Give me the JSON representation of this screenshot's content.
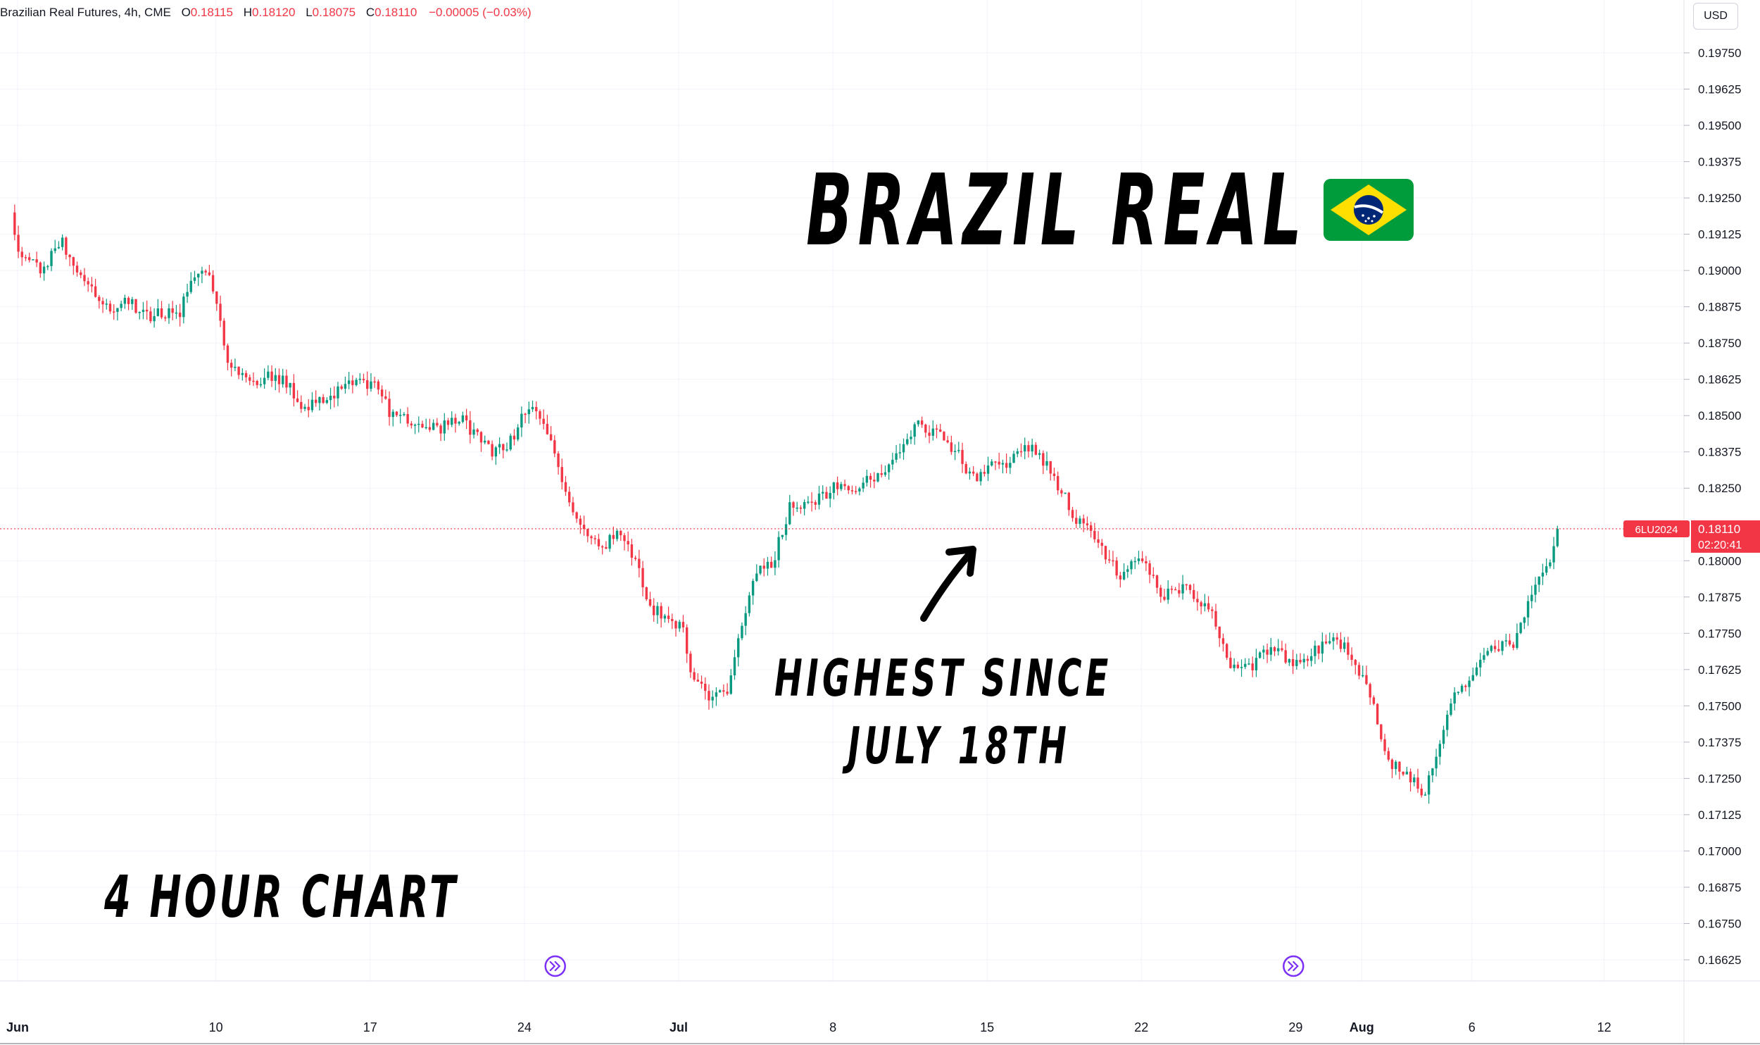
{
  "header": {
    "instrument": "Brazilian Real Futures, 4h, CME",
    "open_label": "O",
    "open": "0.18115",
    "high_label": "H",
    "high": "0.18120",
    "low_label": "L",
    "low": "0.18075",
    "close_label": "C",
    "close": "0.18110",
    "change": "−0.00005 (−0.03%)"
  },
  "currency": "USD",
  "annotations": {
    "title": "BRAZIL REAL",
    "flag_icon": "brazil-flag-icon",
    "arrow_icon": "arrow-up-right-icon",
    "highest_line1": "HIGHEST SINCE",
    "highest_line2": "JULY 18TH",
    "timeframe": "4 HOUR CHART"
  },
  "price_label": {
    "symbol": "6LU2024",
    "price": "0.18110",
    "countdown": "02:20:41"
  },
  "colors": {
    "up": "#089981",
    "down": "#f23645",
    "grid": "#f0f3fa",
    "axis_text": "#131722",
    "event_icon": "#7b2ff7"
  },
  "chart_data": {
    "type": "candlestick",
    "title": "Brazilian Real Futures, 4h, CME",
    "ylim": [
      0.16575,
      0.19825
    ],
    "y_ticks": [
      "0.19750",
      "0.19625",
      "0.19500",
      "0.19375",
      "0.19250",
      "0.19125",
      "0.19000",
      "0.18875",
      "0.18750",
      "0.18625",
      "0.18500",
      "0.18375",
      "0.18250",
      "0.18000",
      "0.17875",
      "0.17750",
      "0.17625",
      "0.17500",
      "0.17375",
      "0.17250",
      "0.17125",
      "0.17000",
      "0.16875",
      "0.16750",
      "0.16625"
    ],
    "x_ticks": [
      {
        "label": "Jun",
        "day": 0
      },
      {
        "label": "10",
        "day": 9
      },
      {
        "label": "17",
        "day": 16
      },
      {
        "label": "24",
        "day": 23
      },
      {
        "label": "Jul",
        "day": 30
      },
      {
        "label": "8",
        "day": 37
      },
      {
        "label": "15",
        "day": 44
      },
      {
        "label": "22",
        "day": 51
      },
      {
        "label": "29",
        "day": 58
      },
      {
        "label": "Aug",
        "day": 61
      },
      {
        "label": "6",
        "day": 66
      },
      {
        "label": "12",
        "day": 72
      }
    ],
    "last_price": 0.1811,
    "event_days": [
      24.4,
      57.9
    ],
    "path": [
      [
        -0.3,
        0.192
      ],
      [
        0.0,
        0.1908
      ],
      [
        1.0,
        0.19
      ],
      [
        2.0,
        0.191
      ],
      [
        2.5,
        0.1903
      ],
      [
        3.5,
        0.1893
      ],
      [
        4.2,
        0.1886
      ],
      [
        5.0,
        0.189
      ],
      [
        5.8,
        0.1884
      ],
      [
        6.5,
        0.1886
      ],
      [
        7.3,
        0.1885
      ],
      [
        8.2,
        0.19
      ],
      [
        8.8,
        0.1896
      ],
      [
        9.5,
        0.187
      ],
      [
        10.3,
        0.1862
      ],
      [
        11.2,
        0.1863
      ],
      [
        12.0,
        0.1863
      ],
      [
        13.0,
        0.1853
      ],
      [
        14.0,
        0.1856
      ],
      [
        15.0,
        0.1861
      ],
      [
        16.2,
        0.186
      ],
      [
        17.0,
        0.185
      ],
      [
        18.0,
        0.1848
      ],
      [
        19.0,
        0.1845
      ],
      [
        20.0,
        0.185
      ],
      [
        21.5,
        0.1837
      ],
      [
        22.5,
        0.1842
      ],
      [
        23.3,
        0.1856
      ],
      [
        24.5,
        0.1834
      ],
      [
        25.2,
        0.1815
      ],
      [
        26.5,
        0.1805
      ],
      [
        27.3,
        0.1809
      ],
      [
        28.0,
        0.18
      ],
      [
        28.7,
        0.1784
      ],
      [
        29.5,
        0.178
      ],
      [
        30.2,
        0.1777
      ],
      [
        30.6,
        0.176
      ],
      [
        31.5,
        0.1753
      ],
      [
        32.2,
        0.1754
      ],
      [
        32.7,
        0.1775
      ],
      [
        33.5,
        0.1795
      ],
      [
        34.3,
        0.18
      ],
      [
        35.0,
        0.1818
      ],
      [
        36.0,
        0.182
      ],
      [
        37.0,
        0.1825
      ],
      [
        38.0,
        0.1825
      ],
      [
        39.0,
        0.183
      ],
      [
        40.0,
        0.1837
      ],
      [
        40.8,
        0.1848
      ],
      [
        41.8,
        0.1843
      ],
      [
        42.8,
        0.1836
      ],
      [
        43.3,
        0.1828
      ],
      [
        44.2,
        0.1832
      ],
      [
        45.0,
        0.1834
      ],
      [
        45.8,
        0.184
      ],
      [
        46.5,
        0.1835
      ],
      [
        47.2,
        0.1826
      ],
      [
        48.0,
        0.1815
      ],
      [
        49.0,
        0.1806
      ],
      [
        50.0,
        0.1795
      ],
      [
        51.0,
        0.18
      ],
      [
        52.0,
        0.1788
      ],
      [
        53.0,
        0.179
      ],
      [
        54.0,
        0.1785
      ],
      [
        55.0,
        0.1765
      ],
      [
        56.0,
        0.1764
      ],
      [
        57.0,
        0.177
      ],
      [
        58.0,
        0.1764
      ],
      [
        59.0,
        0.177
      ],
      [
        60.0,
        0.1772
      ],
      [
        60.8,
        0.1764
      ],
      [
        61.5,
        0.175
      ],
      [
        62.3,
        0.173
      ],
      [
        63.0,
        0.1728
      ],
      [
        63.8,
        0.1718
      ],
      [
        64.2,
        0.1728
      ],
      [
        65.0,
        0.175
      ],
      [
        66.0,
        0.1762
      ],
      [
        67.0,
        0.177
      ],
      [
        68.0,
        0.1772
      ],
      [
        68.8,
        0.179
      ],
      [
        69.6,
        0.1801
      ],
      [
        70.0,
        0.1811
      ]
    ],
    "volatility": 0.00055,
    "candle_width_days": 0.1667
  }
}
